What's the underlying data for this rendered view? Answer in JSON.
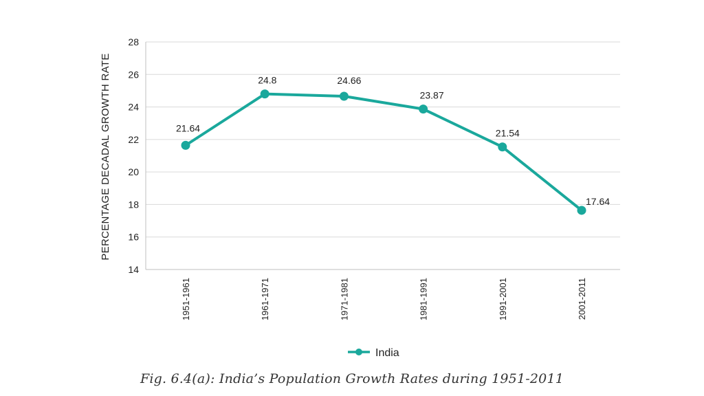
{
  "chart_data": {
    "type": "line",
    "categories": [
      "1951-1961",
      "1961-1971",
      "1971-1981",
      "1981-1991",
      "1991-2001",
      "2001-2011"
    ],
    "series": [
      {
        "name": "India",
        "values": [
          21.64,
          24.8,
          24.66,
          23.87,
          21.54,
          17.64
        ]
      }
    ],
    "data_labels": [
      "21.64",
      "24.8",
      "24.66",
      "23.87",
      "21.54",
      "17.64"
    ],
    "ylabel": "PERCENTAGE DECADAL GROWTH RATE",
    "xlabel": "",
    "ylim": [
      14,
      28
    ],
    "yticks": [
      14,
      16,
      18,
      20,
      22,
      24,
      26,
      28
    ],
    "grid": "horizontal",
    "legend": "bottom-center",
    "colors": {
      "line": "#1aa89c",
      "grid": "#d9d9d9",
      "axis": "#bfbfbf"
    }
  },
  "caption": "Fig. 6.4(a): India’s  Population Growth Rates during 1951-2011"
}
